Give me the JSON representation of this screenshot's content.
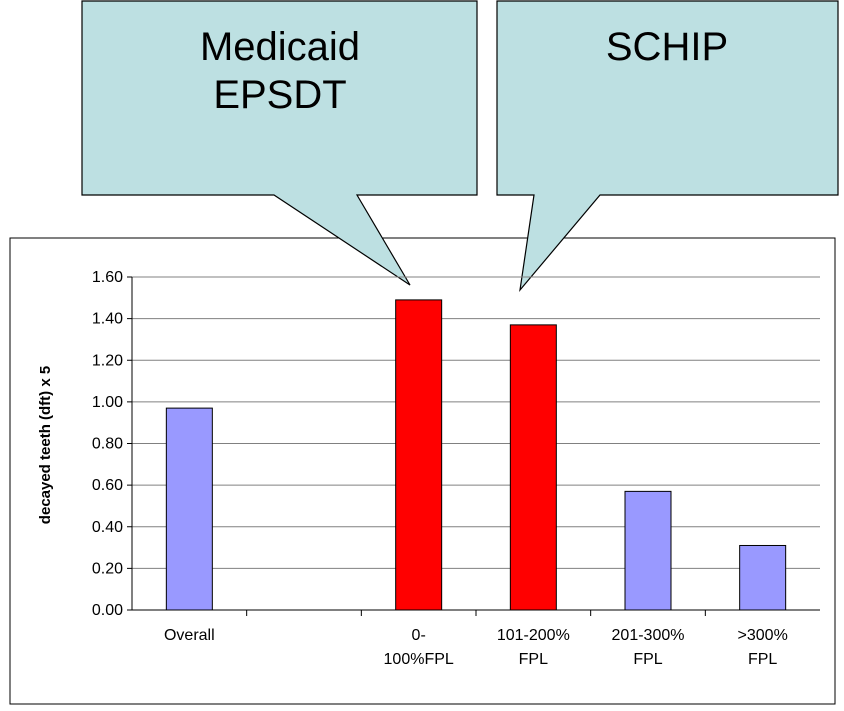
{
  "chart_data": {
    "type": "bar",
    "y_label": "decayed teeth (dft) x 5",
    "categories": [
      "Overall",
      null,
      "0-\n100%FPL",
      "101-200%\nFPL",
      "201-300%\nFPL",
      ">300%\nFPL"
    ],
    "values": [
      0.97,
      null,
      1.49,
      1.37,
      0.57,
      0.31
    ],
    "colors": [
      "#9999ff",
      "#9999ff",
      "#ff0000",
      "#ff0000",
      "#9999ff",
      "#9999ff"
    ],
    "ylim": [
      0,
      1.6
    ],
    "yticks": [
      {
        "value": 0,
        "label": "0.00"
      },
      {
        "value": 0.2,
        "label": "0.20"
      },
      {
        "value": 0.4,
        "label": "0.40"
      },
      {
        "value": 0.6,
        "label": "0.60"
      },
      {
        "value": 0.8,
        "label": "0.80"
      },
      {
        "value": 1.0,
        "label": "1.00"
      },
      {
        "value": 1.2,
        "label": "1.20"
      },
      {
        "value": 1.4,
        "label": "1.40"
      },
      {
        "value": 1.6,
        "label": "1.60"
      }
    ],
    "grid": true,
    "annotations": [
      "Medicaid\nEPSDT",
      "SCHIP"
    ]
  }
}
